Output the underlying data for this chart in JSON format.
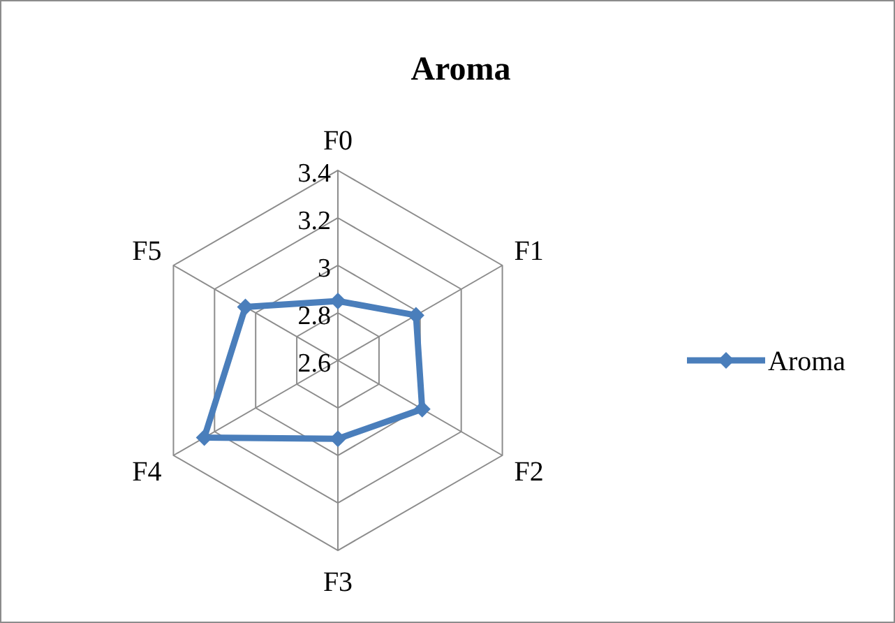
{
  "chart_data": {
    "type": "radar",
    "title": "Aroma",
    "categories": [
      "F0",
      "F1",
      "F2",
      "F3",
      "F4",
      "F5"
    ],
    "series": [
      {
        "name": "Aroma",
        "color": "#4a7ebb",
        "values": [
          2.85,
          2.98,
          3.01,
          2.93,
          3.25,
          3.05
        ]
      }
    ],
    "ylim": [
      2.6,
      3.4
    ],
    "yticks": [
      2.6,
      2.8,
      3,
      3.2,
      3.4
    ],
    "legend": "right",
    "marker": "diamond",
    "grid": true
  }
}
